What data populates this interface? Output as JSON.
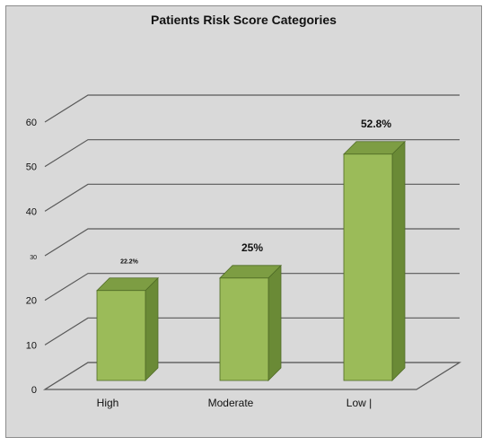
{
  "chart_data": {
    "type": "bar",
    "title": "Patients Risk Score Categories",
    "categories": [
      "High",
      "Moderate",
      "Low |"
    ],
    "values": [
      22.2,
      25,
      52.8
    ],
    "data_labels": [
      "22.2%",
      "25%",
      "52.8%"
    ],
    "y_ticks": [
      "0",
      "10",
      "20",
      "30",
      "40",
      "50",
      "60"
    ],
    "ylim": [
      0,
      60
    ],
    "xlabel": "",
    "ylabel": "",
    "grid": true,
    "legend": "none",
    "style": "3d-column"
  },
  "colors": {
    "background": "#d9d9d9",
    "bar_front": "#9bbb59",
    "bar_side": "#6a8a36",
    "bar_top": "#7d9d43",
    "gridline": "#595959",
    "floor": "#d9d9d9"
  }
}
